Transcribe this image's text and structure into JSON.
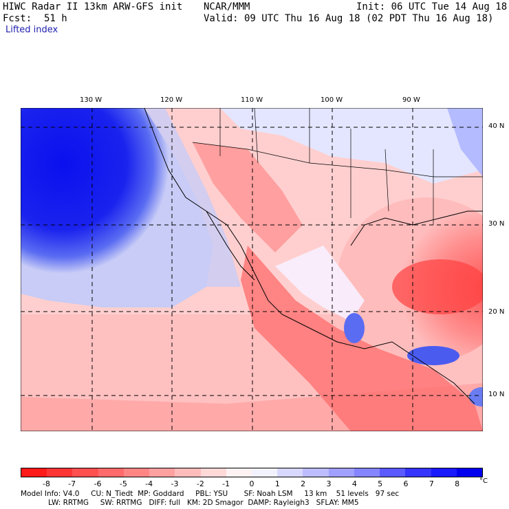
{
  "header": {
    "title_left": "HIWC Radar II 13km ARW-GFS init",
    "center": "NCAR/MMM",
    "init": "Init: 06 UTC Tue 14 Aug 18",
    "fcst_label": "Fcst:",
    "fcst_value": "51 h",
    "valid": "Valid: 09 UTC Thu 16 Aug 18 (02 PDT Thu 16 Aug 18)",
    "field": "Lifted index"
  },
  "map": {
    "lon_labels": [
      "130 W",
      "120 W",
      "110 W",
      "100 W",
      "90 W"
    ],
    "lat_labels": [
      "40 N",
      "30 N",
      "20 N",
      "10 N"
    ]
  },
  "colorbar": {
    "ticks": [
      "-8",
      "-7",
      "-6",
      "-5",
      "-4",
      "-3",
      "-2",
      "-1",
      "0",
      "1",
      "2",
      "3",
      "4",
      "5",
      "6",
      "7",
      "8"
    ],
    "unit": "°C",
    "colors": [
      "#ff1a1a",
      "#ff3535",
      "#ff5050",
      "#ff6a6a",
      "#ff8585",
      "#ffa0a0",
      "#ffbcbc",
      "#ffd8d8",
      "#fff2f2",
      "#f2f2ff",
      "#d8d8ff",
      "#bcbcff",
      "#a0a0ff",
      "#8585ff",
      "#5a5aff",
      "#3535ff",
      "#1a1aff",
      "#0000ee"
    ]
  },
  "model_info": {
    "line1": "Model Info: V4.0     CU: N_Tiedt  MP: Goddard     PBL: YSU       SF: Noah LSM     13 km    51 levels   97 sec",
    "line2": "            LW: RRTMG     SW: RRTMG   DIFF: full   KM: 2D Smagor  DAMP: Rayleigh3   SFLAY: MM5"
  }
}
